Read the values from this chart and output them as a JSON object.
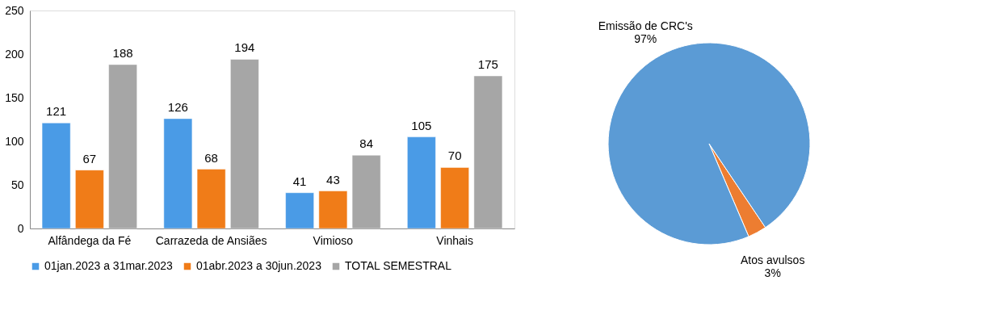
{
  "chart_data": [
    {
      "type": "bar",
      "categories": [
        "Alfândega da Fé",
        "Carrazeda de Ansiães",
        "Vimioso",
        "Vinhais"
      ],
      "series": [
        {
          "name": "01jan.2023 a 31mar.2023",
          "color": "#4a9be6",
          "values": [
            121,
            126,
            41,
            105
          ]
        },
        {
          "name": "01abr.2023 a 30jun.2023",
          "color": "#f07c18",
          "values": [
            67,
            68,
            43,
            70
          ]
        },
        {
          "name": "TOTAL SEMESTRAL",
          "color": "#a6a6a6",
          "values": [
            188,
            194,
            84,
            175
          ]
        }
      ],
      "ylim": [
        0,
        250
      ],
      "yticks": [
        0,
        50,
        100,
        150,
        200,
        250
      ],
      "grid": false,
      "legend": "bottom",
      "data_labels": true
    },
    {
      "type": "pie",
      "categories": [
        "Atos avulsos",
        "Emissão de CRC's"
      ],
      "values": [
        3,
        97
      ],
      "colors": [
        "#ed7d31",
        "#5b9bd5"
      ],
      "value_labels": [
        "3%",
        "97%"
      ],
      "legend": false
    }
  ]
}
